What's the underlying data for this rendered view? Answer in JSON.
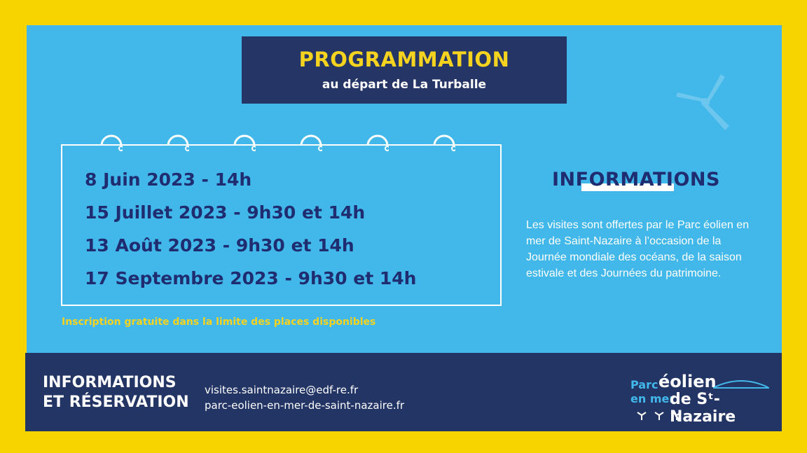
{
  "title": "PROGRAMMATION",
  "subtitle": "au départ de La Turballe",
  "dates": [
    "8 Juin 2023 - 14h",
    "15 Juillet 2023 - 9h30 et 14h",
    "13 Août 2023 - 9h30 et 14h",
    "17 Septembre 2023 - 9h30 et 14h"
  ],
  "note": "Inscription gratuite dans la limite des places disponibles",
  "informations": {
    "heading": "INFORMATIONS",
    "text": "Les visites sont offertes par le Parc éolien en mer de Saint-Nazaire à l’occasion de la Journée mondiale des océans, de la saison estivale et des Journées du patrimoine."
  },
  "reservation": {
    "heading_line1": "INFORMATIONS",
    "heading_line2": "ET RÉSERVATION",
    "email": "visites.saintnazaire@edf-re.fr",
    "website": "parc-eolien-en-mer-de-saint-nazaire.fr"
  },
  "logo": {
    "word1": "Parc",
    "word2": "éolien",
    "word3": "en mer",
    "word4": "de Sᵗ-Nazaire"
  },
  "colors": {
    "border_yellow": "#f7d300",
    "sky_blue": "#42b8ea",
    "navy": "#233565",
    "accent_yellow": "#f5d31e",
    "text_navy": "#1f2c70"
  },
  "icons": [
    "calendar-ring-icon",
    "wind-turbine-icon"
  ]
}
